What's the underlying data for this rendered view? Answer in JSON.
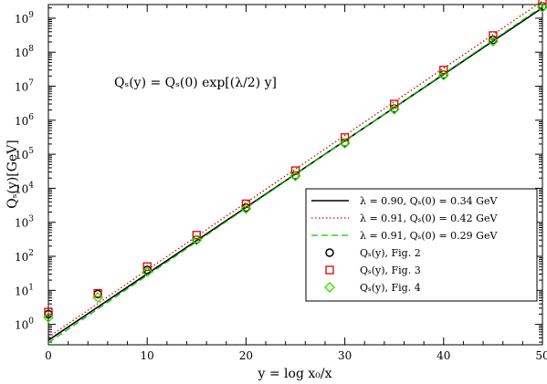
{
  "chart_data": {
    "type": "line",
    "title": "",
    "xlabel": "y = log x₀/x",
    "ylabel": "Qₛ(y)[GeV]",
    "xlim": [
      0,
      50
    ],
    "ylim_log10": [
      -0.6,
      9.4
    ],
    "y_scale": "log",
    "grid": false,
    "legend_position": "lower-right",
    "x_ticks": [
      0,
      10,
      20,
      30,
      40,
      50
    ],
    "x_tick_labels": [
      "0",
      "10",
      "20",
      "30",
      "40",
      "50"
    ],
    "y_ticks_log10": [
      0,
      1,
      2,
      3,
      4,
      5,
      6,
      7,
      8,
      9
    ],
    "y_tick_base": "10",
    "y_tick_exponents": [
      "0",
      "1",
      "2",
      "3",
      "4",
      "5",
      "6",
      "7",
      "8",
      "9"
    ],
    "annotation": "Qₛ(y) = Qₛ(0) exp[(λ/2) y]",
    "series": [
      {
        "name": "λ = 0.90, Qₛ(0) = 0.34 GeV",
        "kind": "line",
        "style": "solid",
        "color": "#000000",
        "lambda": 0.9,
        "q0": 0.34,
        "x": [
          0,
          50
        ]
      },
      {
        "name": "λ = 0.91, Qₛ(0) = 0.42 GeV",
        "kind": "line",
        "style": "dotted",
        "color": "#e00000",
        "lambda": 0.91,
        "q0": 0.42,
        "x": [
          0,
          50
        ]
      },
      {
        "name": "λ = 0.91, Qₛ(0) = 0.29 GeV",
        "kind": "line",
        "style": "dashed",
        "color": "#00cc00",
        "lambda": 0.91,
        "q0": 0.29,
        "x": [
          0,
          50
        ]
      },
      {
        "name": "Qₛ(y), Fig. 2",
        "kind": "marker",
        "marker": "circle",
        "color": "#000000",
        "x": [
          0,
          5,
          10,
          15,
          20,
          25,
          30,
          35,
          40,
          45,
          50
        ],
        "y": [
          2.0,
          7.8,
          40,
          310,
          2700,
          24000.0,
          220000.0,
          2200000.0,
          22000000.0,
          230000000.0,
          2200000000.0
        ]
      },
      {
        "name": "Qₛ(y), Fig. 3",
        "kind": "marker",
        "marker": "square",
        "color": "#e00000",
        "x": [
          0,
          5,
          10,
          15,
          20,
          25,
          30,
          35,
          40,
          45,
          50
        ],
        "y": [
          2.3,
          8.2,
          50,
          420,
          3500,
          33000.0,
          310000.0,
          3000000.0,
          30000000.0,
          310000000.0,
          3200000000.0
        ]
      },
      {
        "name": "Qₛ(y), Fig. 4",
        "kind": "marker",
        "marker": "diamond",
        "color": "#33dd00",
        "x": [
          0,
          5,
          10,
          15,
          20,
          25,
          30,
          35,
          40,
          45,
          50
        ],
        "y": [
          1.6,
          6.2,
          35,
          300,
          2500,
          23000.0,
          210000.0,
          2100000.0,
          21000000.0,
          210000000.0,
          2100000000.0
        ]
      }
    ]
  }
}
